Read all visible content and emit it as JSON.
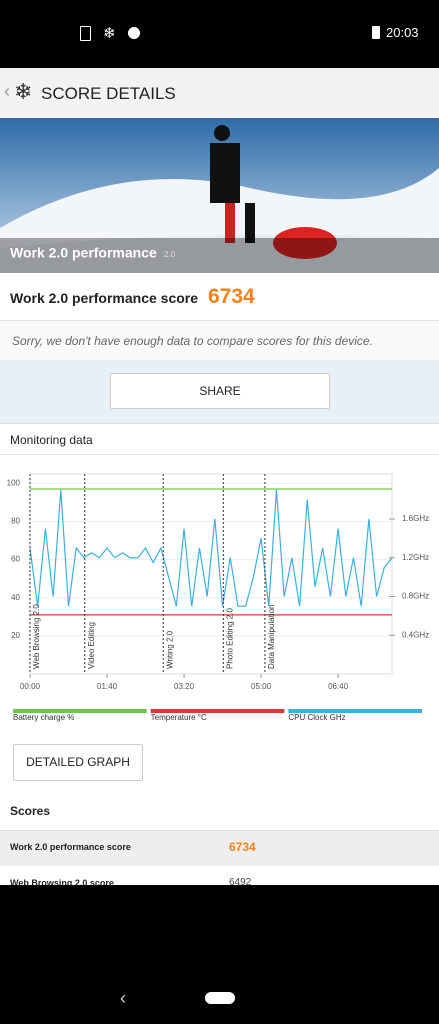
{
  "status_bar": {
    "time": "20:03"
  },
  "header": {
    "title": "SCORE DETAILS"
  },
  "hero": {
    "title": "Work 2.0 performance",
    "version": "2.0"
  },
  "score": {
    "label": "Work 2.0 performance score",
    "value": "6734"
  },
  "note": "Sorry, we don't have enough data to compare scores for this device.",
  "share_button": "SHARE",
  "monitoring": {
    "title": "Monitoring data"
  },
  "chart_data": {
    "type": "line",
    "xlim": [
      0,
      470
    ],
    "xticks": [
      {
        "value": 0,
        "label": "00:00"
      },
      {
        "value": 100,
        "label": "01:40"
      },
      {
        "value": 200,
        "label": "03:20"
      },
      {
        "value": 300,
        "label": "05:00"
      },
      {
        "value": 400,
        "label": "06:40"
      }
    ],
    "ylim": [
      0,
      100
    ],
    "yticks": [
      20,
      40,
      60,
      80,
      100
    ],
    "y2lim": [
      0,
      2
    ],
    "y2ticks": [
      {
        "value": 0.4,
        "label": "0.4GHz"
      },
      {
        "value": 0.8,
        "label": "0.8GHz"
      },
      {
        "value": 1.2,
        "label": "1.2GHz"
      },
      {
        "value": 1.6,
        "label": "1.6GHz"
      }
    ],
    "markers": [
      {
        "x": 0,
        "label": "Web Browsing 2.0"
      },
      {
        "x": 71,
        "label": "Video Editing"
      },
      {
        "x": 173,
        "label": "Writing 2.0"
      },
      {
        "x": 251,
        "label": "Photo Editing 2.0"
      },
      {
        "x": 305,
        "label": "Data Manipulation"
      }
    ],
    "series": [
      {
        "name": "Battery charge %",
        "color": "#6cc644",
        "x": [
          0,
          470
        ],
        "values": [
          97,
          97
        ]
      },
      {
        "name": "Temperature °C",
        "color": "#d33a3a",
        "x": [
          0,
          470
        ],
        "values": [
          31,
          31
        ]
      },
      {
        "name": "CPU Clock GHz",
        "color": "#3ab0e2",
        "axis": "y2",
        "x": [
          0,
          10,
          20,
          30,
          40,
          50,
          60,
          70,
          80,
          90,
          100,
          110,
          120,
          130,
          140,
          150,
          160,
          170,
          180,
          190,
          200,
          210,
          220,
          230,
          240,
          250,
          260,
          270,
          280,
          290,
          300,
          310,
          320,
          330,
          340,
          350,
          360,
          370,
          380,
          390,
          400,
          410,
          420,
          430,
          440,
          450,
          460,
          470
        ],
        "values": [
          1.3,
          0.7,
          1.5,
          0.8,
          1.9,
          0.7,
          1.3,
          1.2,
          1.25,
          1.2,
          1.3,
          1.2,
          1.25,
          1.2,
          1.2,
          1.3,
          1.15,
          1.3,
          1.0,
          0.7,
          1.5,
          0.7,
          1.3,
          0.8,
          1.6,
          0.7,
          1.2,
          0.7,
          0.7,
          1.0,
          1.4,
          0.7,
          1.9,
          0.8,
          1.2,
          0.7,
          1.8,
          0.9,
          1.3,
          0.8,
          1.5,
          0.8,
          1.2,
          0.7,
          1.6,
          0.8,
          1.1,
          1.2
        ]
      }
    ]
  },
  "detailed_button": "DETAILED GRAPH",
  "scores": {
    "title": "Scores",
    "rows": [
      [
        "Work 2.0 performance score",
        "6734"
      ],
      [
        "Web Browsing 2.0 score",
        "6492"
      ]
    ]
  }
}
